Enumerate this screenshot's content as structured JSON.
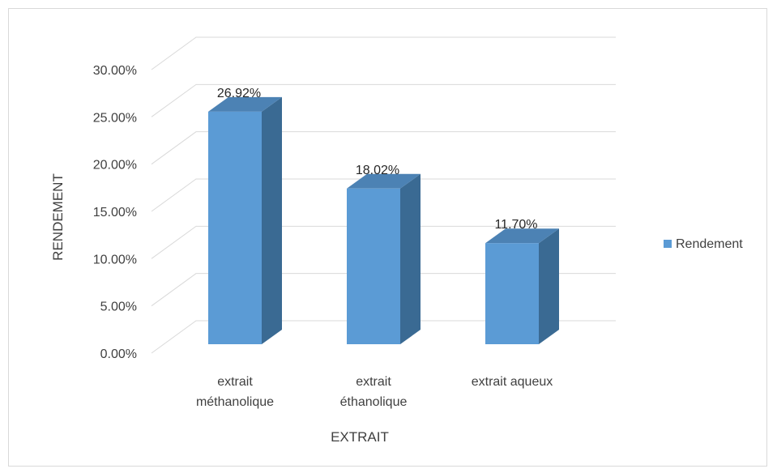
{
  "chart_data": {
    "type": "bar",
    "title": "",
    "xlabel": "EXTRAIT",
    "ylabel": "RENDEMENT",
    "categories": [
      [
        "extrait",
        "méthanolique"
      ],
      [
        "extrait",
        "éthanolique"
      ],
      [
        "extrait aqueux"
      ]
    ],
    "series": [
      {
        "name": "Rendement",
        "values": [
          0.2692,
          0.1802,
          0.117
        ],
        "data_labels": [
          "26.92%",
          "18.02%",
          "11.70%"
        ],
        "color": "#5b9bd5",
        "side_color": "#3a6a93",
        "top_color": "#4c82b4"
      }
    ],
    "ylim": [
      0,
      0.3
    ],
    "yticks": [
      "0.00%",
      "5.00%",
      "10.00%",
      "15.00%",
      "20.00%",
      "25.00%",
      "30.00%"
    ],
    "ytick_values": [
      0,
      0.05,
      0.1,
      0.15,
      0.2,
      0.25,
      0.3
    ],
    "grid": true,
    "legend": "right",
    "three_d": true
  }
}
